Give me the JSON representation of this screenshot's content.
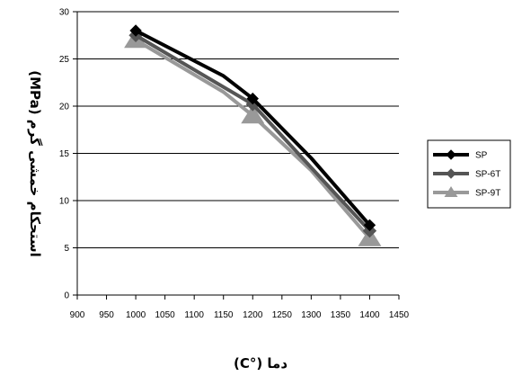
{
  "chart_data": {
    "type": "line",
    "xlabel": "دما (°C)",
    "ylabel": "استحکام خمشی گرم (MPa)",
    "xlim": [
      900,
      1450
    ],
    "ylim": [
      0,
      30
    ],
    "x_ticks": [
      900,
      950,
      1000,
      1050,
      1100,
      1150,
      1200,
      1250,
      1300,
      1350,
      1400,
      1450
    ],
    "y_ticks": [
      0,
      5,
      10,
      15,
      20,
      25,
      30
    ],
    "grid": "horizontal major gridlines",
    "legend_position": "right",
    "series": [
      {
        "name": "SP",
        "marker": "diamond",
        "color": "#000000",
        "x": [
          1000,
          1150,
          1200,
          1300,
          1400
        ],
        "y": [
          28.0,
          23.2,
          20.8,
          14.5,
          7.4
        ]
      },
      {
        "name": "SP-6T",
        "marker": "diamond",
        "color": "#555555",
        "x": [
          1000,
          1200,
          1400
        ],
        "y": [
          27.5,
          20.2,
          6.8
        ]
      },
      {
        "name": "SP-9T",
        "marker": "triangle",
        "color": "#999999",
        "x": [
          1000,
          1150,
          1200,
          1300,
          1400
        ],
        "y": [
          27.0,
          21.5,
          19.0,
          13.2,
          6.0
        ]
      }
    ]
  }
}
